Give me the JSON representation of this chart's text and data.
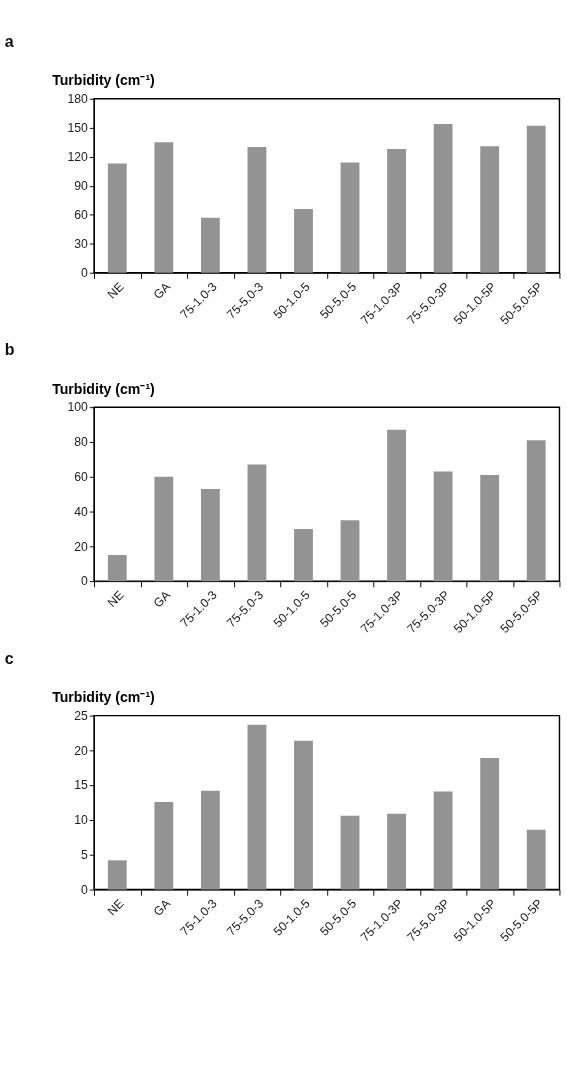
{
  "chart_data": [
    {
      "type": "bar",
      "title": "a",
      "ylabel": "Turbidity (cm⁻¹)",
      "categories": [
        "NE",
        "GA",
        "75-1.0-3",
        "75-5.0-3",
        "50-1.0-5",
        "50-5.0-5",
        "75-1.0-3P",
        "75-5.0-3P",
        "50-1.0-5P",
        "50-5.0-5P"
      ],
      "values": [
        113,
        135,
        57,
        130,
        66,
        114,
        128,
        154,
        131,
        152
      ],
      "color": "#939393",
      "ylim": [
        0,
        180
      ],
      "yticks": [
        0,
        30,
        60,
        90,
        120,
        150,
        180
      ]
    },
    {
      "type": "bar",
      "title": "b",
      "ylabel": "Turbidity (cm⁻¹)",
      "categories": [
        "NE",
        "GA",
        "75-1.0-3",
        "75-5.0-3",
        "50-1.0-5",
        "50-5.0-5",
        "75-1.0-3P",
        "75-5.0-3P",
        "50-1.0-5P",
        "50-5.0-5P"
      ],
      "values": [
        15,
        60,
        53,
        67,
        30,
        35,
        87,
        63,
        61,
        81
      ],
      "color": "#939393",
      "ylim": [
        0,
        100
      ],
      "yticks": [
        0,
        20,
        40,
        60,
        80,
        100
      ]
    },
    {
      "type": "bar",
      "title": "c",
      "ylabel": "Turbidity (cm⁻¹)",
      "categories": [
        "NE",
        "GA",
        "75-1.0-3",
        "75-5.0-3",
        "50-1.0-5",
        "50-5.0-5",
        "75-1.0-3P",
        "75-5.0-3P",
        "50-1.0-5P",
        "50-5.0-5P"
      ],
      "values": [
        4.2,
        12.6,
        14.2,
        23.7,
        21.4,
        10.6,
        10.9,
        14.1,
        18.9,
        8.6
      ],
      "color": "#939393",
      "ylim": [
        0,
        25
      ],
      "yticks": [
        0,
        5,
        10,
        15,
        20,
        25
      ]
    }
  ]
}
